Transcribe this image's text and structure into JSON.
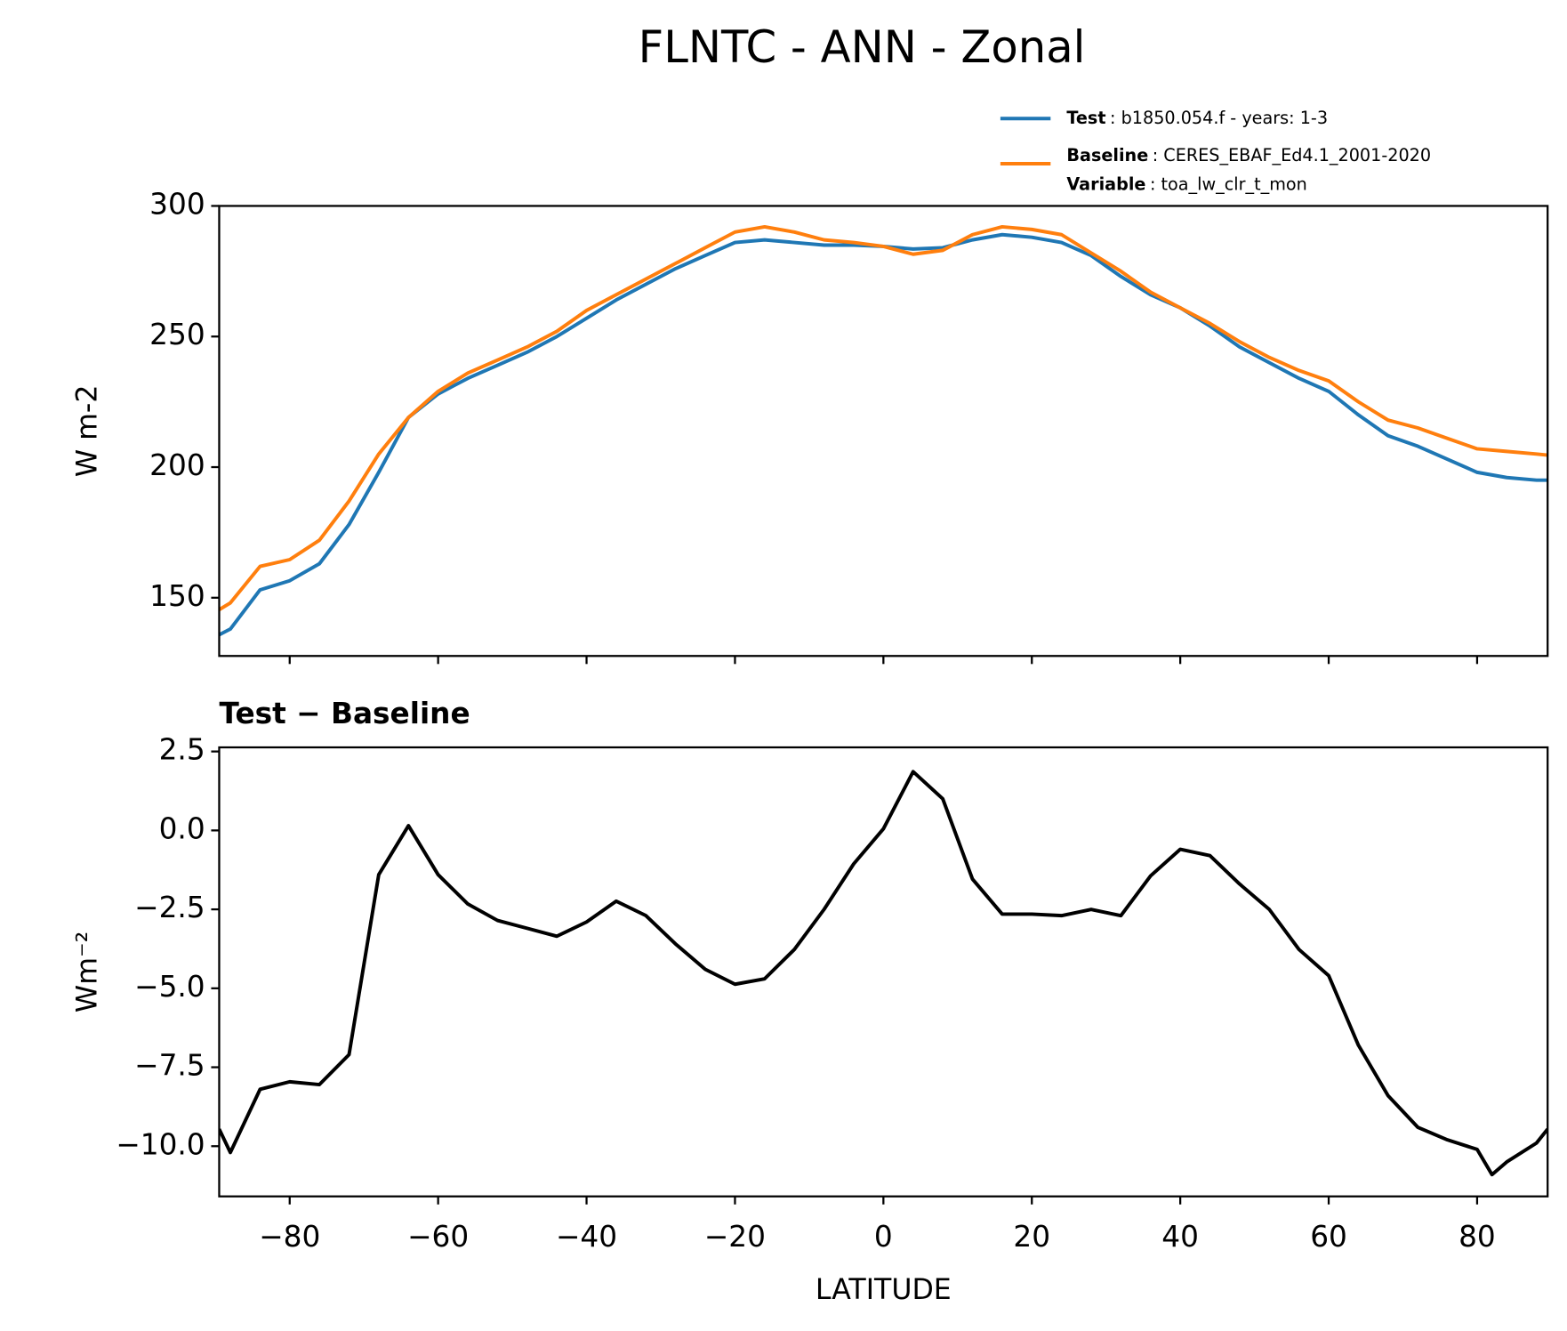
{
  "chart_data": [
    {
      "type": "line",
      "title": "FLNTC - ANN - Zonal",
      "ylabel": "W m-2",
      "x": [
        -89.5,
        -88,
        -84,
        -80,
        -76,
        -72,
        -68,
        -64,
        -60,
        -56,
        -52,
        -48,
        -44,
        -40,
        -36,
        -32,
        -28,
        -24,
        -20,
        -16,
        -12,
        -8,
        -4,
        0,
        4,
        8,
        12,
        16,
        20,
        24,
        28,
        32,
        36,
        40,
        44,
        48,
        52,
        56,
        60,
        64,
        68,
        72,
        76,
        80,
        84,
        88,
        89.5
      ],
      "series": [
        {
          "name": "Test",
          "description": ": b1850.054.f - years: 1-3",
          "color": "#1f77b4",
          "values": [
            135.8,
            138,
            153,
            156.5,
            163,
            178,
            198,
            219,
            228,
            234,
            239,
            244,
            250,
            257,
            264,
            270,
            276,
            281,
            286,
            287,
            286,
            285,
            285,
            284.5,
            283.5,
            284,
            287,
            289,
            288,
            286,
            281,
            273,
            266,
            261,
            254,
            246,
            240,
            234,
            229,
            220,
            212,
            208,
            203,
            198,
            196,
            195,
            195
          ]
        },
        {
          "name": "Baseline",
          "description": ": CERES_EBAF_Ed4.1_2001-2020",
          "color": "#ff7f0e",
          "values": [
            145.4,
            148,
            162,
            164.6,
            172,
            187,
            205,
            219,
            229,
            236,
            241,
            246,
            252,
            260,
            266,
            272,
            278,
            284,
            290,
            292,
            290,
            287,
            286,
            284.5,
            281.5,
            283,
            289,
            292,
            291,
            289,
            282,
            275,
            267,
            261,
            255,
            248,
            242,
            237,
            233,
            225,
            218,
            215,
            211,
            207,
            206,
            205,
            204.6
          ]
        }
      ],
      "legend_extra": {
        "name": "Variable",
        "description": ": toa_lw_clr_t_mon"
      },
      "xlim": [
        -89.5,
        89.5
      ],
      "ylim": [
        127.7,
        300
      ],
      "xticks": [
        -80,
        -60,
        -40,
        -20,
        0,
        20,
        40,
        60,
        80
      ],
      "yticks": [
        150,
        200,
        250,
        300
      ]
    },
    {
      "type": "line",
      "title": "Test − Baseline",
      "ylabel": "Wm⁻²",
      "xlabel": "LATITUDE",
      "x": [
        -89.5,
        -88,
        -84,
        -80,
        -76,
        -72,
        -68,
        -64,
        -60,
        -56,
        -52,
        -48,
        -44,
        -40,
        -36,
        -32,
        -28,
        -24,
        -20,
        -16,
        -12,
        -8,
        -4,
        0,
        4,
        8,
        12,
        16,
        20,
        24,
        28,
        32,
        36,
        40,
        44,
        48,
        52,
        56,
        60,
        64,
        68,
        72,
        76,
        80,
        82,
        84,
        88,
        89.5
      ],
      "series": [
        {
          "color": "#000000",
          "values": [
            -9.46,
            -10.2,
            -8.2,
            -7.96,
            -8.05,
            -7.1,
            -1.4,
            0.15,
            -1.4,
            -2.33,
            -2.85,
            -3.1,
            -3.35,
            -2.9,
            -2.24,
            -2.7,
            -3.6,
            -4.4,
            -4.87,
            -4.7,
            -3.77,
            -2.5,
            -1.06,
            0.05,
            1.86,
            1.0,
            -1.54,
            -2.65,
            -2.65,
            -2.7,
            -2.5,
            -2.7,
            -1.44,
            -0.6,
            -0.8,
            -1.7,
            -2.5,
            -3.77,
            -4.6,
            -6.8,
            -8.4,
            -9.4,
            -9.8,
            -10.1,
            -10.9,
            -10.5,
            -9.9,
            -9.46
          ]
        }
      ],
      "xlim": [
        -89.5,
        89.5
      ],
      "ylim": [
        -11.59,
        2.63
      ],
      "xticks": [
        {
          "value": -80,
          "label": "−80"
        },
        {
          "value": -60,
          "label": "−60"
        },
        {
          "value": -40,
          "label": "−40"
        },
        {
          "value": -20,
          "label": "−20"
        },
        0,
        20,
        40,
        60,
        80
      ],
      "yticks": [
        {
          "value": -10,
          "label": "−10.0"
        },
        {
          "value": -7.5,
          "label": "−7.5"
        },
        {
          "value": -5,
          "label": "−5.0"
        },
        {
          "value": -2.5,
          "label": "−2.5"
        },
        {
          "value": 0,
          "label": "0.0"
        },
        2.5
      ]
    }
  ]
}
